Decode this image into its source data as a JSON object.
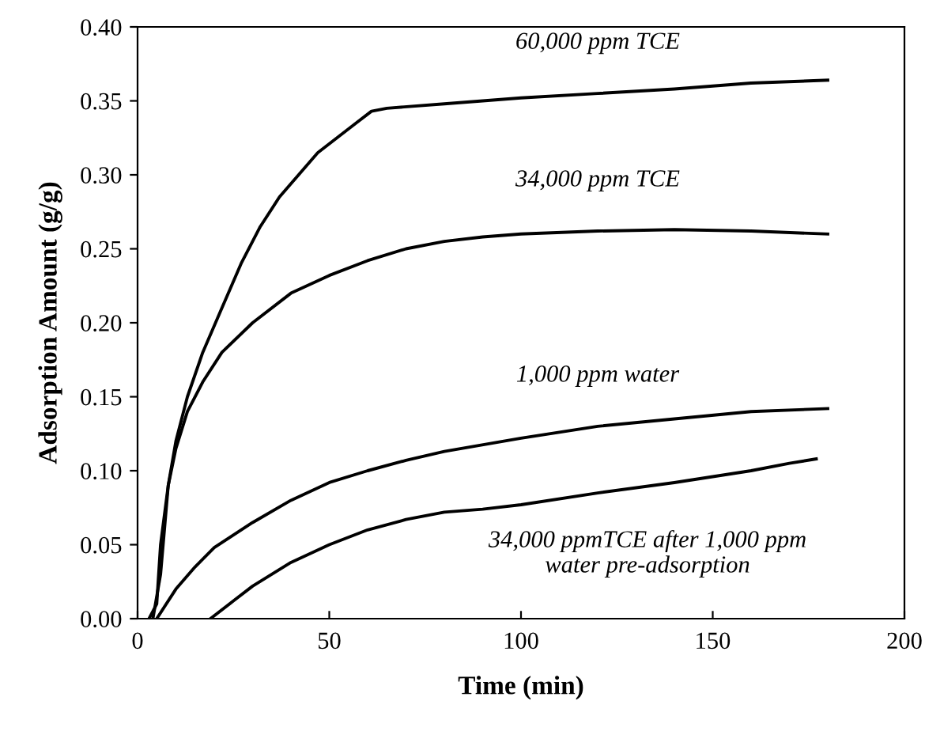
{
  "chart_data": {
    "type": "line",
    "xlabel": "Time (min)",
    "ylabel": "Adsorption Amount (g/g)",
    "xlim": [
      0,
      200
    ],
    "xticks": [
      0,
      50,
      100,
      150,
      200
    ],
    "ylim": [
      0,
      0.4
    ],
    "yticks": [
      {
        "value": 0,
        "label": "0.00"
      },
      {
        "value": 0.05,
        "label": "0.05"
      },
      {
        "value": 0.1,
        "label": "0.10"
      },
      {
        "value": 0.15,
        "label": "0.15"
      },
      {
        "value": 0.2,
        "label": "0.20"
      },
      {
        "value": 0.25,
        "label": "0.25"
      },
      {
        "value": 0.3,
        "label": "0.30"
      },
      {
        "value": 0.35,
        "label": "0.35"
      },
      {
        "value": 0.4,
        "label": "0.40"
      }
    ],
    "grid": false,
    "legend": false,
    "marker": "none",
    "line_style": "solid",
    "series": [
      {
        "name": "60,000 ppm TCE",
        "color": "#000000",
        "x": [
          4,
          6,
          8,
          10,
          13,
          17,
          22,
          27,
          32,
          37,
          42,
          47,
          52,
          57,
          61,
          65,
          80,
          100,
          120,
          140,
          160,
          180
        ],
        "values": [
          0,
          0.03,
          0.09,
          0.12,
          0.15,
          0.18,
          0.21,
          0.24,
          0.265,
          0.285,
          0.3,
          0.315,
          0.325,
          0.335,
          0.343,
          0.345,
          0.348,
          0.352,
          0.355,
          0.358,
          0.362,
          0.364
        ]
      },
      {
        "name": "34,000 ppm TCE",
        "color": "#000000",
        "x": [
          3,
          5,
          6,
          8,
          10,
          13,
          17,
          22,
          30,
          40,
          50,
          60,
          70,
          80,
          90,
          100,
          120,
          140,
          160,
          180
        ],
        "values": [
          0,
          0.01,
          0.05,
          0.09,
          0.115,
          0.14,
          0.16,
          0.18,
          0.2,
          0.22,
          0.232,
          0.242,
          0.25,
          0.255,
          0.258,
          0.26,
          0.262,
          0.263,
          0.262,
          0.26
        ]
      },
      {
        "name": "1,000 ppm water",
        "color": "#000000",
        "x": [
          5,
          10,
          15,
          20,
          30,
          40,
          50,
          60,
          70,
          80,
          100,
          120,
          140,
          160,
          180
        ],
        "values": [
          0,
          0.02,
          0.035,
          0.048,
          0.065,
          0.08,
          0.092,
          0.1,
          0.107,
          0.113,
          0.122,
          0.13,
          0.135,
          0.14,
          0.142
        ]
      },
      {
        "name": "34,000 ppmTCE after 1,000 ppm\nwater pre-adsorption",
        "color": "#000000",
        "x": [
          19,
          25,
          30,
          40,
          50,
          60,
          70,
          80,
          90,
          100,
          120,
          140,
          150,
          160,
          170,
          177
        ],
        "values": [
          0,
          0.012,
          0.022,
          0.038,
          0.05,
          0.06,
          0.067,
          0.072,
          0.074,
          0.077,
          0.085,
          0.092,
          0.096,
          0.1,
          0.105,
          0.108
        ]
      }
    ]
  }
}
